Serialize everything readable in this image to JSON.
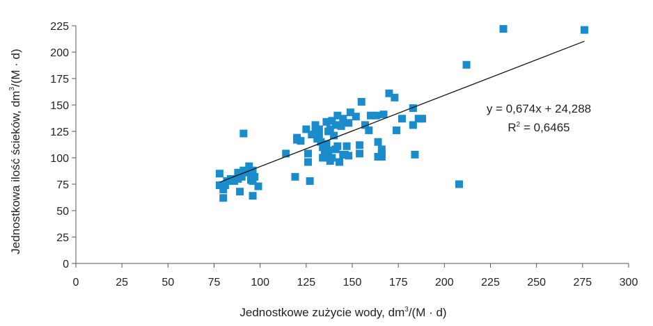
{
  "chart_data": {
    "type": "scatter",
    "xlabel": {
      "main": "Jednostkowe zużycie wody, dm",
      "sup": "3",
      "rest": "/(M · d)"
    },
    "ylabel": {
      "main": "Jednostkowa ilość ścieków, dm",
      "sup": "3",
      "rest": "/(M · d)"
    },
    "xlim": [
      0,
      300
    ],
    "ylim": [
      0,
      225
    ],
    "xticks": [
      0,
      25,
      50,
      75,
      100,
      125,
      150,
      175,
      200,
      225,
      250,
      275,
      300
    ],
    "yticks": [
      0,
      25,
      50,
      75,
      100,
      125,
      150,
      175,
      200,
      225
    ],
    "grid": false,
    "marker_color": "#1a8ccc",
    "points": [
      [
        78,
        85
      ],
      [
        78,
        74
      ],
      [
        80,
        62
      ],
      [
        80,
        70
      ],
      [
        81,
        74
      ],
      [
        82,
        78
      ],
      [
        84,
        80
      ],
      [
        86,
        78
      ],
      [
        88,
        80
      ],
      [
        88,
        86
      ],
      [
        89,
        68
      ],
      [
        90,
        82
      ],
      [
        91,
        88
      ],
      [
        91,
        123
      ],
      [
        93,
        86
      ],
      [
        94,
        92
      ],
      [
        95,
        79
      ],
      [
        96,
        64
      ],
      [
        96,
        88
      ],
      [
        96,
        78
      ],
      [
        97,
        82
      ],
      [
        99,
        73
      ],
      [
        114,
        104
      ],
      [
        119,
        82
      ],
      [
        120,
        119
      ],
      [
        120,
        117
      ],
      [
        122,
        116
      ],
      [
        125,
        127
      ],
      [
        126,
        96
      ],
      [
        126,
        104
      ],
      [
        127,
        78
      ],
      [
        128,
        122
      ],
      [
        130,
        131
      ],
      [
        130,
        125
      ],
      [
        131,
        118
      ],
      [
        132,
        121
      ],
      [
        132,
        127
      ],
      [
        133,
        115
      ],
      [
        134,
        110
      ],
      [
        134,
        100
      ],
      [
        135,
        103
      ],
      [
        136,
        113
      ],
      [
        136,
        134
      ],
      [
        137,
        125
      ],
      [
        137,
        107
      ],
      [
        138,
        127
      ],
      [
        138,
        97
      ],
      [
        139,
        135
      ],
      [
        139,
        100
      ],
      [
        140,
        121
      ],
      [
        141,
        108
      ],
      [
        141,
        131
      ],
      [
        142,
        140
      ],
      [
        142,
        111
      ],
      [
        143,
        96
      ],
      [
        144,
        130
      ],
      [
        145,
        137
      ],
      [
        145,
        103
      ],
      [
        146,
        103
      ],
      [
        147,
        111
      ],
      [
        148,
        133
      ],
      [
        148,
        102
      ],
      [
        149,
        143
      ],
      [
        152,
        139
      ],
      [
        154,
        104
      ],
      [
        154,
        112
      ],
      [
        155,
        153
      ],
      [
        157,
        131
      ],
      [
        159,
        126
      ],
      [
        160,
        140
      ],
      [
        163,
        140
      ],
      [
        164,
        115
      ],
      [
        164,
        101
      ],
      [
        166,
        104
      ],
      [
        166,
        101
      ],
      [
        166,
        108
      ],
      [
        167,
        141
      ],
      [
        170,
        161
      ],
      [
        173,
        157
      ],
      [
        174,
        126
      ],
      [
        177,
        137
      ],
      [
        183,
        147
      ],
      [
        183,
        131
      ],
      [
        184,
        103
      ],
      [
        186,
        137
      ],
      [
        188,
        137
      ],
      [
        208,
        75
      ],
      [
        212,
        188
      ],
      [
        232,
        222
      ],
      [
        276,
        221
      ]
    ],
    "trendline": {
      "x_from": 78,
      "x_to": 276,
      "slope": 0.674,
      "intercept": 24.288
    },
    "annotations": {
      "equation": "y = 0,674x + 24,288",
      "r2_prefix": "R",
      "r2_sup": "2",
      "r2_suffix": " = 0,6465"
    }
  }
}
